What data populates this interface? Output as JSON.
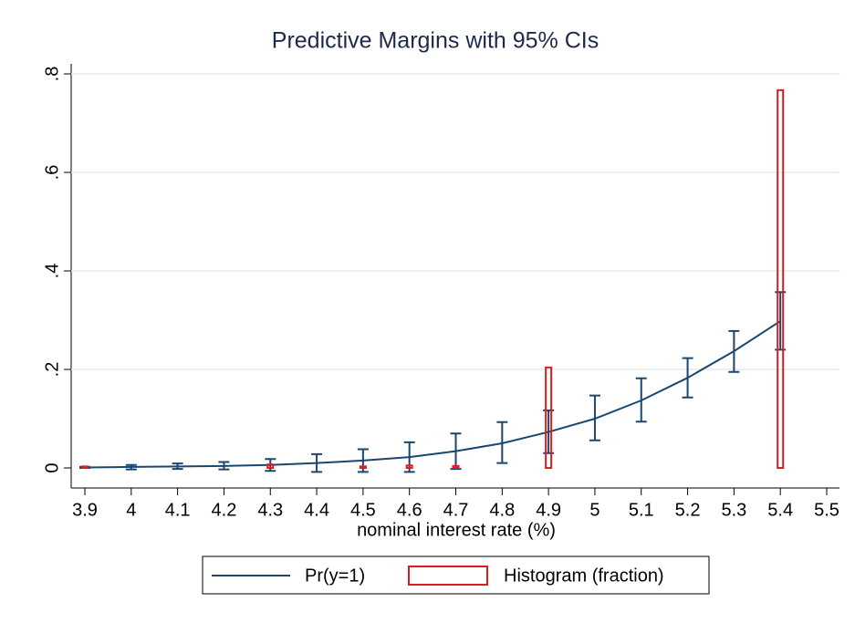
{
  "chart_data": {
    "type": "line",
    "title": "Predictive Margins with 95% CIs",
    "x_label": "nominal interest rate (%)",
    "xlim": [
      3.9,
      5.5
    ],
    "xticks": [
      3.9,
      4,
      4.1,
      4.2,
      4.3,
      4.4,
      4.5,
      4.6,
      4.7,
      4.8,
      4.9,
      5,
      5.1,
      5.2,
      5.3,
      5.4,
      5.5
    ],
    "ylim": [
      0,
      0.8
    ],
    "yticks": [
      0,
      {
        "value": 0.2,
        "label": ".2"
      },
      {
        "value": 0.4,
        "label": ".4"
      },
      {
        "value": 0.6,
        "label": ".6"
      },
      {
        "value": 0.8,
        "label": ".8"
      }
    ],
    "grid": true,
    "series": [
      {
        "name": "Pr(y=1)",
        "type": "line",
        "color": "#1a476f",
        "x": [
          3.9,
          4,
          4.1,
          4.2,
          4.3,
          4.4,
          4.5,
          4.6,
          4.7,
          4.8,
          4.9,
          5,
          5.1,
          5.2,
          5.3,
          5.4
        ],
        "values": [
          0.001,
          0.002,
          0.003,
          0.004,
          0.006,
          0.01,
          0.015,
          0.022,
          0.034,
          0.05,
          0.073,
          0.1,
          0.137,
          0.183,
          0.237,
          0.298
        ],
        "lower": [
          0,
          -0.003,
          -0.002,
          -0.003,
          -0.006,
          -0.008,
          -0.008,
          -0.008,
          -0.002,
          0.01,
          0.03,
          0.056,
          0.094,
          0.143,
          0.195,
          0.24
        ],
        "upper": [
          0.002,
          0.006,
          0.009,
          0.012,
          0.018,
          0.028,
          0.038,
          0.052,
          0.07,
          0.093,
          0.117,
          0.147,
          0.182,
          0.223,
          0.278,
          0.357
        ]
      },
      {
        "name": "Histogram (fraction)",
        "type": "bar",
        "color": "#e31a1c",
        "x": [
          3.9,
          4.3,
          4.5,
          4.6,
          4.7,
          4.9,
          5.4
        ],
        "values": [
          0.003,
          0.007,
          0.003,
          0.005,
          0.004,
          0.204,
          0.767
        ]
      }
    ]
  }
}
